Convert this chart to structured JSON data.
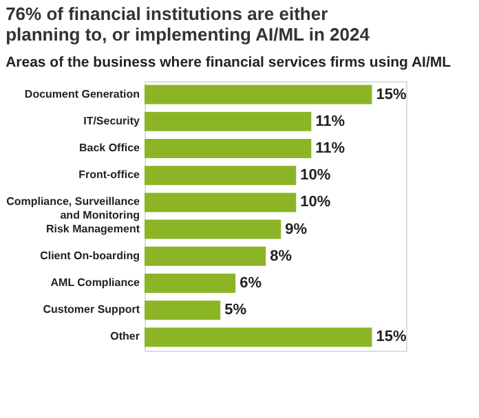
{
  "chart_data": {
    "type": "bar",
    "orientation": "horizontal",
    "title": "76% of financial institutions are either planning to, or implementing AI/ML in 2024",
    "subtitle": "Areas of the business where financial services firms using AI/ML",
    "categories": [
      "Document Generation",
      "IT/Security",
      "Back Office",
      "Front-office",
      "Compliance, Surveillance and Monitoring",
      "Risk Management",
      "Client On-boarding",
      "AML Compliance",
      "Customer Support",
      "Other"
    ],
    "values": [
      15,
      11,
      11,
      10,
      10,
      9,
      8,
      6,
      5,
      15
    ],
    "value_labels": [
      "15%",
      "11%",
      "11%",
      "10%",
      "10%",
      "9%",
      "8%",
      "6%",
      "5%",
      "15%"
    ],
    "color": "#8cb526"
  }
}
